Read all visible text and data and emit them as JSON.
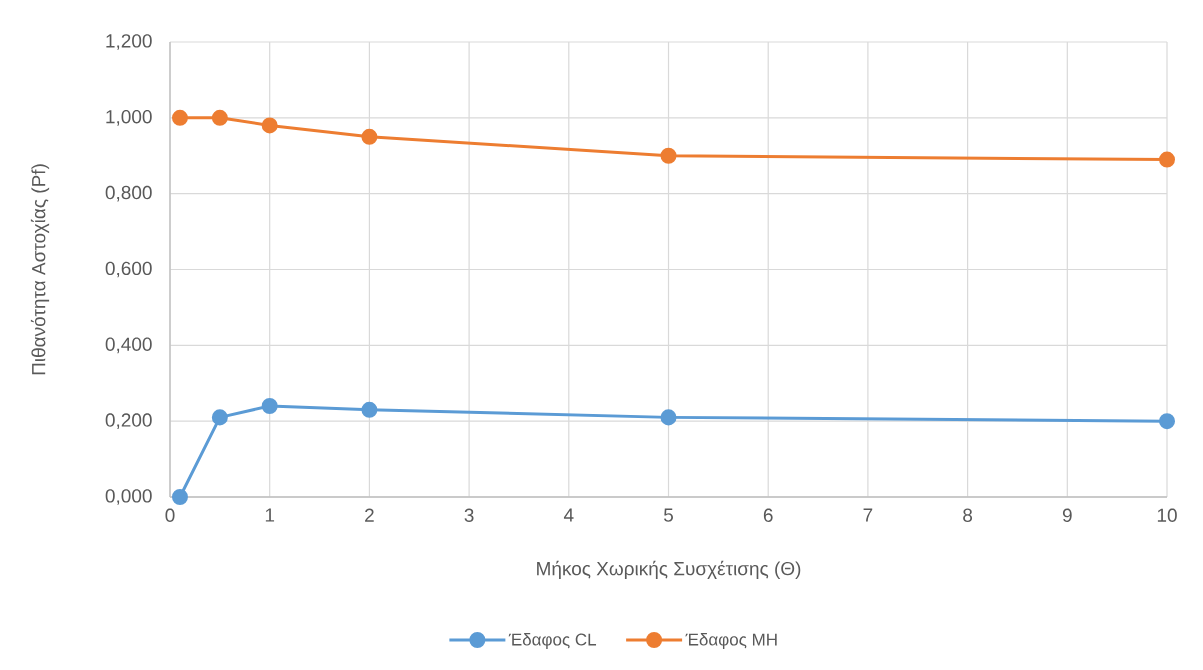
{
  "chart_data": {
    "type": "line",
    "xlabel": "Μήκος Χωρικής Συσχέτισης (Θ)",
    "ylabel": "Πιθανότητα Αστοχίας (Pf)",
    "x": [
      0.1,
      0.5,
      1,
      2,
      5,
      10
    ],
    "series": [
      {
        "name": "Έδαφος CL",
        "color": "#5b9bd5",
        "values": [
          0,
          0.21,
          0.24,
          0.23,
          0.21,
          0.2
        ]
      },
      {
        "name": "Έδαφος MH",
        "color": "#ed7d31",
        "values": [
          1.0,
          1.0,
          0.98,
          0.95,
          0.9,
          0.89
        ]
      }
    ],
    "xlim": [
      0,
      10
    ],
    "ylim": [
      0,
      1.2
    ],
    "xticks": [
      0,
      1,
      2,
      3,
      4,
      5,
      6,
      7,
      8,
      9,
      10
    ],
    "yticks": [
      {
        "value": 0,
        "label": "0,000"
      },
      {
        "value": 0.2,
        "label": "0,200"
      },
      {
        "value": 0.4,
        "label": "0,400"
      },
      {
        "value": 0.6,
        "label": "0,600"
      },
      {
        "value": 0.8,
        "label": "0,800"
      },
      {
        "value": 1.0,
        "label": "1,000"
      },
      {
        "value": 1.2,
        "label": "1,200"
      }
    ],
    "grid": true,
    "legend": "bottom",
    "marker": "circle",
    "line_style": "solid"
  }
}
